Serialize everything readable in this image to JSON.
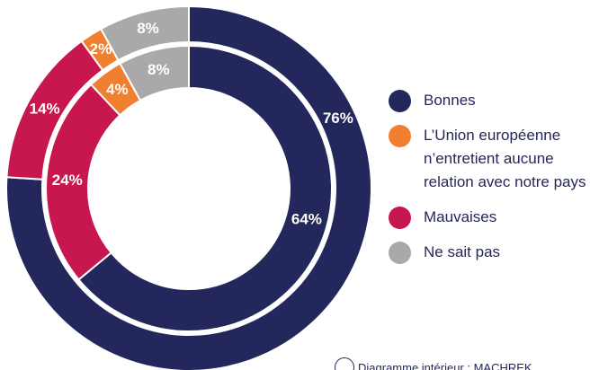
{
  "chart_data": {
    "type": "donut",
    "categories": [
      "Bonnes",
      "L’Union européenne n’entretient aucune relation avec notre pays",
      "Mauvaises",
      "Ne sait pas"
    ],
    "colors": [
      "#24275b",
      "#f07f30",
      "#c8174f",
      "#a9a9a9"
    ],
    "series": [
      {
        "values": [
          76,
          2,
          14,
          8
        ],
        "value_labels": [
          "76%",
          "2%",
          "14%",
          "8%"
        ]
      },
      {
        "values": [
          64,
          4,
          24,
          8
        ],
        "value_labels": [
          "64%",
          "4%",
          "24%",
          "8%"
        ]
      }
    ],
    "note": "Diagramme intérieur : MACHREK"
  }
}
